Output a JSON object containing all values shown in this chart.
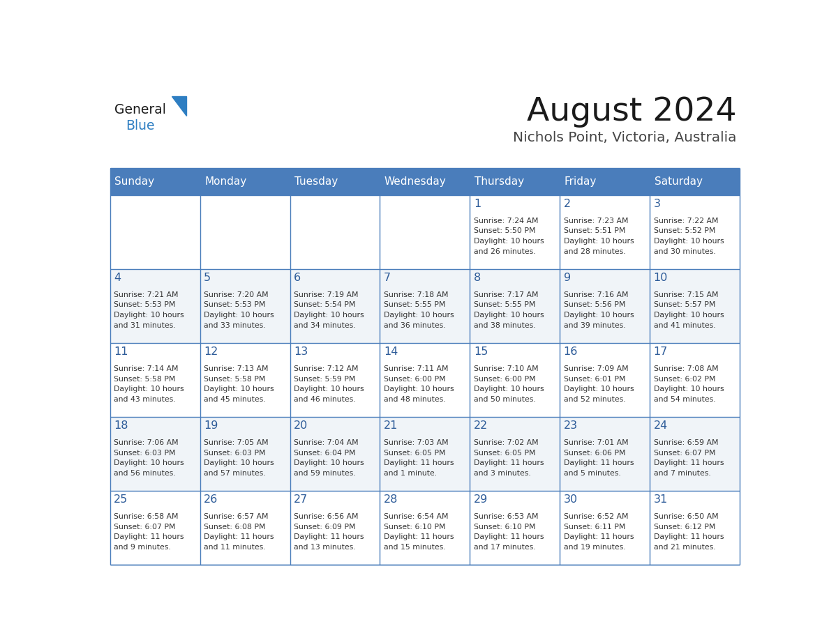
{
  "title": "August 2024",
  "subtitle": "Nichols Point, Victoria, Australia",
  "days_of_week": [
    "Sunday",
    "Monday",
    "Tuesday",
    "Wednesday",
    "Thursday",
    "Friday",
    "Saturday"
  ],
  "header_bg": "#4A7DBB",
  "header_text": "#FFFFFF",
  "cell_bg_light": "#FFFFFF",
  "cell_bg_alt": "#F0F4F8",
  "grid_line_color": "#4A7DBB",
  "day_number_color": "#2E5C99",
  "cell_text_color": "#333333",
  "title_color": "#1A1A1A",
  "subtitle_color": "#444444",
  "logo_general_color": "#1A1A1A",
  "logo_blue_color": "#2E7EC2",
  "calendar_data": [
    [
      null,
      null,
      null,
      null,
      {
        "day": 1,
        "sunrise": "7:24 AM",
        "sunset": "5:50 PM",
        "daylight": "10 hours and 26 minutes."
      },
      {
        "day": 2,
        "sunrise": "7:23 AM",
        "sunset": "5:51 PM",
        "daylight": "10 hours and 28 minutes."
      },
      {
        "day": 3,
        "sunrise": "7:22 AM",
        "sunset": "5:52 PM",
        "daylight": "10 hours and 30 minutes."
      }
    ],
    [
      {
        "day": 4,
        "sunrise": "7:21 AM",
        "sunset": "5:53 PM",
        "daylight": "10 hours and 31 minutes."
      },
      {
        "day": 5,
        "sunrise": "7:20 AM",
        "sunset": "5:53 PM",
        "daylight": "10 hours and 33 minutes."
      },
      {
        "day": 6,
        "sunrise": "7:19 AM",
        "sunset": "5:54 PM",
        "daylight": "10 hours and 34 minutes."
      },
      {
        "day": 7,
        "sunrise": "7:18 AM",
        "sunset": "5:55 PM",
        "daylight": "10 hours and 36 minutes."
      },
      {
        "day": 8,
        "sunrise": "7:17 AM",
        "sunset": "5:55 PM",
        "daylight": "10 hours and 38 minutes."
      },
      {
        "day": 9,
        "sunrise": "7:16 AM",
        "sunset": "5:56 PM",
        "daylight": "10 hours and 39 minutes."
      },
      {
        "day": 10,
        "sunrise": "7:15 AM",
        "sunset": "5:57 PM",
        "daylight": "10 hours and 41 minutes."
      }
    ],
    [
      {
        "day": 11,
        "sunrise": "7:14 AM",
        "sunset": "5:58 PM",
        "daylight": "10 hours and 43 minutes."
      },
      {
        "day": 12,
        "sunrise": "7:13 AM",
        "sunset": "5:58 PM",
        "daylight": "10 hours and 45 minutes."
      },
      {
        "day": 13,
        "sunrise": "7:12 AM",
        "sunset": "5:59 PM",
        "daylight": "10 hours and 46 minutes."
      },
      {
        "day": 14,
        "sunrise": "7:11 AM",
        "sunset": "6:00 PM",
        "daylight": "10 hours and 48 minutes."
      },
      {
        "day": 15,
        "sunrise": "7:10 AM",
        "sunset": "6:00 PM",
        "daylight": "10 hours and 50 minutes."
      },
      {
        "day": 16,
        "sunrise": "7:09 AM",
        "sunset": "6:01 PM",
        "daylight": "10 hours and 52 minutes."
      },
      {
        "day": 17,
        "sunrise": "7:08 AM",
        "sunset": "6:02 PM",
        "daylight": "10 hours and 54 minutes."
      }
    ],
    [
      {
        "day": 18,
        "sunrise": "7:06 AM",
        "sunset": "6:03 PM",
        "daylight": "10 hours and 56 minutes."
      },
      {
        "day": 19,
        "sunrise": "7:05 AM",
        "sunset": "6:03 PM",
        "daylight": "10 hours and 57 minutes."
      },
      {
        "day": 20,
        "sunrise": "7:04 AM",
        "sunset": "6:04 PM",
        "daylight": "10 hours and 59 minutes."
      },
      {
        "day": 21,
        "sunrise": "7:03 AM",
        "sunset": "6:05 PM",
        "daylight": "11 hours and 1 minute."
      },
      {
        "day": 22,
        "sunrise": "7:02 AM",
        "sunset": "6:05 PM",
        "daylight": "11 hours and 3 minutes."
      },
      {
        "day": 23,
        "sunrise": "7:01 AM",
        "sunset": "6:06 PM",
        "daylight": "11 hours and 5 minutes."
      },
      {
        "day": 24,
        "sunrise": "6:59 AM",
        "sunset": "6:07 PM",
        "daylight": "11 hours and 7 minutes."
      }
    ],
    [
      {
        "day": 25,
        "sunrise": "6:58 AM",
        "sunset": "6:07 PM",
        "daylight": "11 hours and 9 minutes."
      },
      {
        "day": 26,
        "sunrise": "6:57 AM",
        "sunset": "6:08 PM",
        "daylight": "11 hours and 11 minutes."
      },
      {
        "day": 27,
        "sunrise": "6:56 AM",
        "sunset": "6:09 PM",
        "daylight": "11 hours and 13 minutes."
      },
      {
        "day": 28,
        "sunrise": "6:54 AM",
        "sunset": "6:10 PM",
        "daylight": "11 hours and 15 minutes."
      },
      {
        "day": 29,
        "sunrise": "6:53 AM",
        "sunset": "6:10 PM",
        "daylight": "11 hours and 17 minutes."
      },
      {
        "day": 30,
        "sunrise": "6:52 AM",
        "sunset": "6:11 PM",
        "daylight": "11 hours and 19 minutes."
      },
      {
        "day": 31,
        "sunrise": "6:50 AM",
        "sunset": "6:12 PM",
        "daylight": "11 hours and 21 minutes."
      }
    ]
  ]
}
